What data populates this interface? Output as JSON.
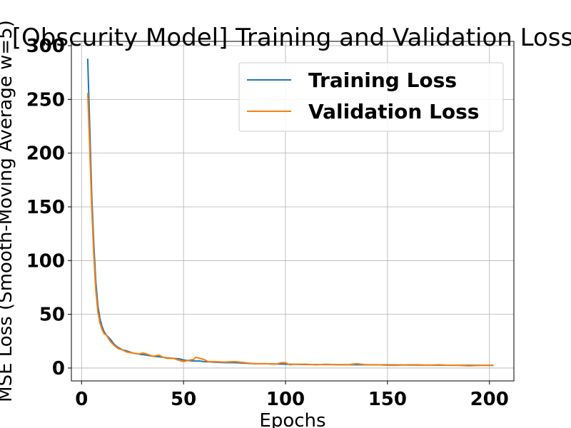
{
  "chart_data": {
    "type": "line",
    "title": "[Obscurity Model] Training and Validation Loss",
    "xlabel": "Epochs",
    "ylabel": "MSE Loss (Smooth-Moving Average w=5)",
    "xlim": [
      -5,
      212
    ],
    "ylim": [
      -12,
      304
    ],
    "xticks": [
      0,
      50,
      100,
      150,
      200
    ],
    "yticks": [
      0,
      50,
      100,
      150,
      200,
      250,
      300
    ],
    "grid": true,
    "legend_position": "top-right",
    "series": [
      {
        "name": "Training Loss",
        "color": "#1f77b4",
        "x": [
          3,
          4,
          5,
          6,
          7,
          8,
          9,
          10,
          11,
          12,
          13,
          14,
          16,
          18,
          20,
          22,
          25,
          28,
          30,
          32,
          35,
          38,
          40,
          42,
          45,
          48,
          50,
          52,
          55,
          58,
          60,
          65,
          70,
          75,
          80,
          85,
          90,
          95,
          100,
          102,
          105,
          110,
          120,
          130,
          140,
          150,
          160,
          170,
          180,
          190,
          200,
          202
        ],
        "y": [
          288,
          225,
          160,
          115,
          80,
          58,
          46,
          39,
          34,
          31,
          29,
          27,
          22,
          19,
          17,
          16,
          14,
          13,
          12.5,
          12,
          11,
          10.5,
          10,
          9.5,
          9,
          8.5,
          7.5,
          7,
          6.5,
          6.5,
          6,
          5.5,
          5,
          5,
          4.5,
          4,
          4,
          3.8,
          3.6,
          3.5,
          3.4,
          3.3,
          3.2,
          3.1,
          3,
          2.9,
          2.8,
          2.7,
          2.6,
          2.5,
          2.5,
          2.4
        ]
      },
      {
        "name": "Validation Loss",
        "color": "#ff7f0e",
        "x": [
          3,
          4,
          5,
          6,
          7,
          8,
          9,
          10,
          11,
          12,
          13,
          14,
          16,
          18,
          20,
          22,
          25,
          28,
          30,
          32,
          35,
          38,
          40,
          42,
          45,
          48,
          50,
          52,
          55,
          56,
          58,
          60,
          62,
          65,
          70,
          75,
          80,
          85,
          90,
          95,
          98,
          100,
          102,
          105,
          110,
          115,
          120,
          125,
          130,
          135,
          140,
          145,
          150,
          155,
          160,
          165,
          170,
          175,
          180,
          185,
          190,
          195,
          200,
          202
        ],
        "y": [
          256,
          205,
          148,
          105,
          72,
          52,
          42,
          36,
          32,
          31,
          28,
          25,
          21,
          18,
          17,
          15,
          14,
          13,
          14,
          13,
          11,
          12,
          10,
          9,
          9,
          7,
          6,
          7,
          8,
          10,
          9,
          8,
          6,
          6,
          5.5,
          6,
          5,
          4,
          4,
          3.5,
          5,
          5,
          3,
          3.5,
          3.5,
          3,
          3.5,
          3,
          3,
          4,
          3,
          3,
          2.5,
          2.5,
          3,
          3,
          2.5,
          3,
          2.5,
          2.5,
          2,
          2.5,
          2.5,
          2.5
        ]
      }
    ]
  }
}
